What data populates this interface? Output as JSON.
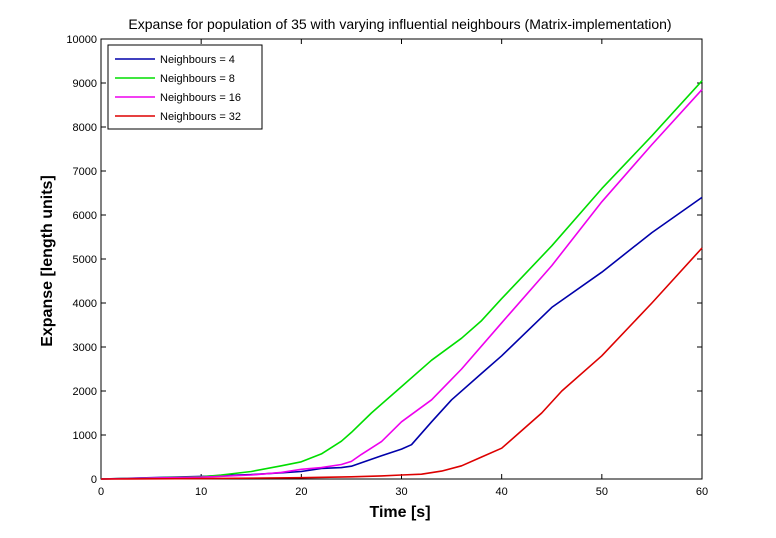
{
  "chart_data": {
    "type": "line",
    "title": "Expanse for population of 35 with varying influential neighbours (Matrix-implementation)",
    "xlabel": "Time [s]",
    "ylabel": "Expanse [length units]",
    "xlim": [
      0,
      60
    ],
    "ylim": [
      0,
      10000
    ],
    "xticks": [
      0,
      10,
      20,
      30,
      40,
      50,
      60
    ],
    "yticks": [
      0,
      1000,
      2000,
      3000,
      4000,
      5000,
      6000,
      7000,
      8000,
      9000,
      10000
    ],
    "grid": false,
    "legend_position": "top-left",
    "series": [
      {
        "name": "Neighbours = 4",
        "color": "#0000aa",
        "x": [
          0,
          5,
          10,
          15,
          18,
          20,
          22,
          24,
          25,
          26,
          28,
          30,
          31,
          33,
          35,
          38,
          40,
          45,
          50,
          55,
          60
        ],
        "y": [
          0,
          30,
          60,
          100,
          140,
          170,
          240,
          260,
          290,
          370,
          530,
          680,
          780,
          1300,
          1800,
          2400,
          2800,
          3900,
          4700,
          5600,
          6400
        ]
      },
      {
        "name": "Neighbours = 8",
        "color": "#00dd00",
        "x": [
          0,
          5,
          10,
          12,
          15,
          18,
          20,
          22,
          24,
          25,
          27,
          30,
          33,
          36,
          38,
          40,
          45,
          50,
          55,
          60
        ],
        "y": [
          0,
          25,
          50,
          90,
          170,
          300,
          390,
          570,
          860,
          1060,
          1500,
          2100,
          2700,
          3200,
          3600,
          4100,
          5300,
          6600,
          7800,
          9050
        ]
      },
      {
        "name": "Neighbours = 16",
        "color": "#ee00ee",
        "x": [
          0,
          5,
          10,
          15,
          18,
          20,
          22,
          24,
          25,
          26,
          28,
          30,
          33,
          36,
          40,
          45,
          50,
          55,
          60
        ],
        "y": [
          0,
          20,
          40,
          90,
          150,
          220,
          260,
          330,
          400,
          560,
          850,
          1300,
          1800,
          2500,
          3550,
          4850,
          6300,
          7600,
          8850
        ]
      },
      {
        "name": "Neighbours = 32",
        "color": "#dd0000",
        "x": [
          0,
          10,
          20,
          25,
          28,
          30,
          32,
          34,
          36,
          38,
          40,
          42,
          44,
          46,
          50,
          55,
          60
        ],
        "y": [
          0,
          10,
          30,
          50,
          70,
          90,
          110,
          180,
          300,
          500,
          700,
          1100,
          1500,
          2000,
          2800,
          4000,
          5250
        ]
      }
    ]
  }
}
